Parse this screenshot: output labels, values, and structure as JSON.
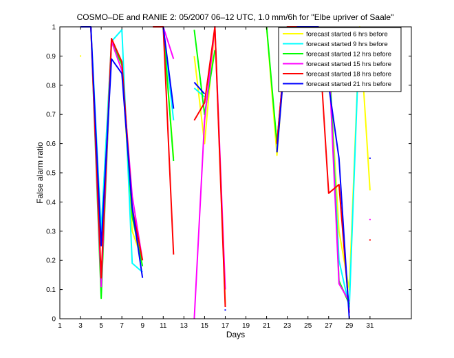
{
  "chart_data": {
    "type": "line",
    "title": "COSMO–DE and RANIE 2: 05/2007 06–12 UTC, 1.0 mm/6h for \"Elbe upriver of Saale\"",
    "xlabel": "Days",
    "ylabel": "False alarm ratio",
    "xlim": [
      1,
      35
    ],
    "ylim": [
      0,
      1
    ],
    "x_ticks": [
      1,
      3,
      5,
      7,
      9,
      11,
      13,
      15,
      17,
      19,
      21,
      23,
      25,
      27,
      29,
      31
    ],
    "y_ticks": [
      0,
      0.1,
      0.2,
      0.3,
      0.4,
      0.5,
      0.6,
      0.7,
      0.8,
      0.9,
      1
    ],
    "y_tick_labels": [
      "0",
      "0.1",
      "0.2",
      "0.3",
      "0.4",
      "0.5",
      "0.6",
      "0.7",
      "0.8",
      "0.9",
      "1"
    ],
    "grid": false,
    "legend_position": "top-right",
    "series": [
      {
        "name": "forecast started 6 hrs before",
        "color": "#ffff00",
        "x": [
          3,
          4,
          5,
          6,
          7,
          8,
          9,
          null,
          10,
          11,
          12,
          null,
          14,
          15,
          16,
          17,
          null,
          21,
          22,
          23,
          24,
          25,
          26,
          27,
          28,
          29,
          30,
          31
        ],
        "y": [
          0.9,
          null,
          0.3,
          0.95,
          0.87,
          0.3,
          0.2,
          null,
          1,
          1,
          0.55,
          null,
          0.9,
          0.6,
          1,
          0.05,
          null,
          1,
          0.56,
          1,
          1,
          1,
          1,
          0.9,
          0.3,
          0.1,
          1,
          0.44
        ]
      },
      {
        "name": "forecast started 9 hrs before",
        "color": "#00ffff",
        "x": [
          4,
          5,
          6,
          7,
          8,
          9,
          null,
          10,
          11,
          12,
          null,
          14,
          15,
          null,
          22,
          23,
          24,
          25,
          26,
          27,
          28,
          29,
          30
        ],
        "y": [
          1,
          0.3,
          0.95,
          0.99,
          0.19,
          0.16,
          null,
          1,
          1,
          0.68,
          null,
          0.79,
          0.76,
          null,
          0.58,
          0.99,
          1,
          1,
          1,
          0.92,
          0.2,
          0.04,
          1
        ]
      },
      {
        "name": "forecast started 12 hrs before",
        "color": "#00ff00",
        "x": [
          4,
          5,
          6,
          7,
          8,
          9,
          null,
          10,
          11,
          12,
          null,
          14,
          15,
          16,
          null,
          21,
          22,
          23,
          24,
          25,
          26,
          27,
          28,
          29
        ],
        "y": [
          1,
          0.07,
          0.95,
          0.87,
          0.35,
          0.18,
          null,
          1,
          1,
          0.54,
          null,
          0.99,
          0.7,
          0.92,
          null,
          1,
          0.6,
          1,
          1,
          1,
          1,
          0.95,
          0.13,
          0.05
        ]
      },
      {
        "name": "forecast started 15 hrs before",
        "color": "#ff00ff",
        "x": [
          4,
          5,
          6,
          7,
          8,
          9,
          null,
          10,
          11,
          12,
          null,
          14,
          15,
          16,
          17,
          null,
          22,
          23,
          24,
          25,
          26,
          27,
          28,
          29,
          null,
          31
        ],
        "y": [
          1,
          0.11,
          0.95,
          0.85,
          0.42,
          0.2,
          null,
          1,
          1,
          0.89,
          null,
          0,
          0.68,
          1,
          0.1,
          null,
          0.6,
          1,
          1,
          1,
          1,
          0.9,
          0.12,
          0.06,
          null,
          0.34
        ]
      },
      {
        "name": "forecast started 18 hrs before",
        "color": "#ff0000",
        "x": [
          4,
          5,
          6,
          7,
          8,
          9,
          null,
          10,
          11,
          12,
          null,
          14,
          15,
          16,
          17,
          null,
          22,
          23,
          24,
          25,
          26,
          27,
          28,
          29,
          null,
          31
        ],
        "y": [
          1,
          0.14,
          0.96,
          0.88,
          0.38,
          0.2,
          null,
          1,
          1,
          0.22,
          null,
          0.68,
          0.74,
          1,
          0.04,
          null,
          0.6,
          1,
          1,
          1,
          1,
          0.43,
          0.46,
          0.02,
          null,
          0.27
        ]
      },
      {
        "name": "forecast started 21 hrs before",
        "color": "#0000ff",
        "x": [
          3,
          4,
          5,
          6,
          7,
          8,
          9,
          null,
          11,
          12,
          null,
          14,
          15,
          null,
          17,
          null,
          22,
          23,
          24,
          25,
          26,
          27,
          28,
          29,
          null,
          31
        ],
        "y": [
          1,
          1,
          0.25,
          0.89,
          0.84,
          0.38,
          0.14,
          null,
          1,
          0.72,
          null,
          0.81,
          0.77,
          null,
          0.03,
          null,
          0.57,
          0.99,
          1,
          1,
          1,
          0.8,
          0.55,
          0,
          null,
          0.55
        ]
      }
    ]
  }
}
